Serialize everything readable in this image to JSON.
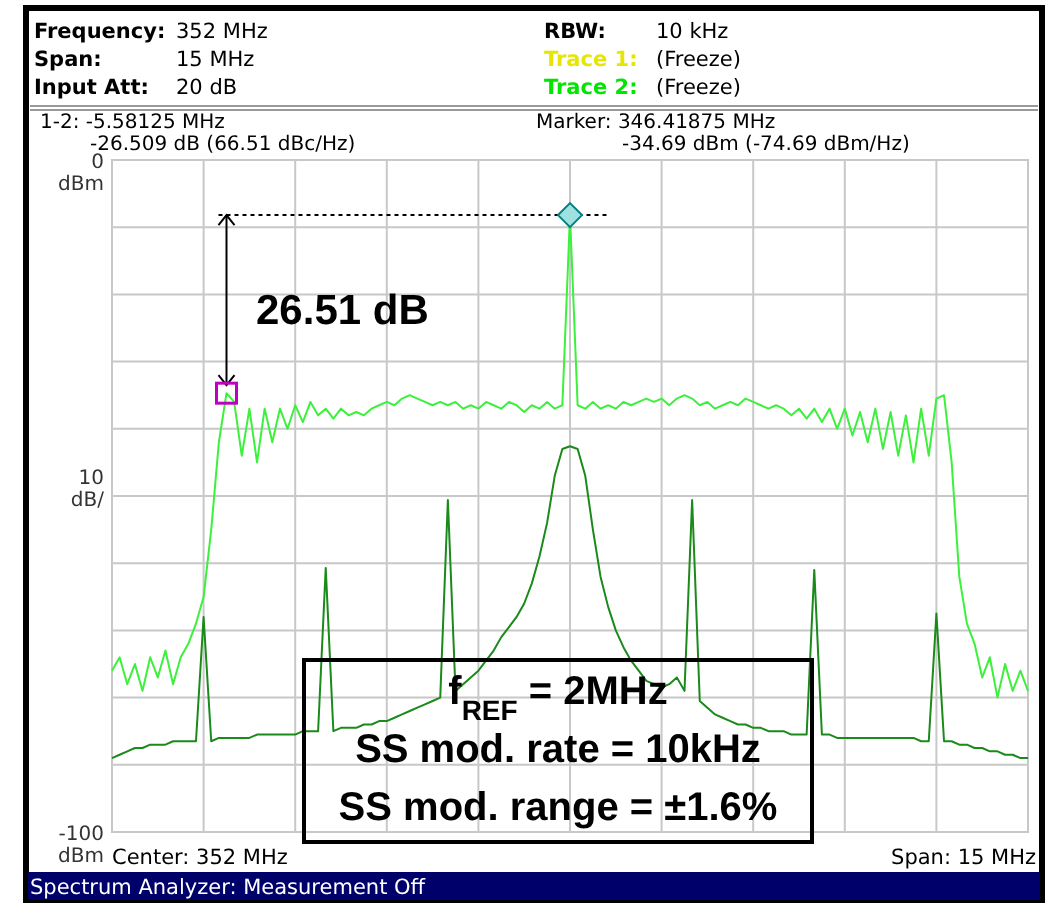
{
  "chart_data": {
    "type": "line",
    "ylabel": "10 dB/",
    "ylim": [
      -100,
      0
    ],
    "categories": [
      null,
      null,
      null,
      null,
      null,
      null,
      null,
      null,
      null,
      null,
      null,
      null,
      null,
      null,
      null,
      null,
      null,
      null,
      null,
      null,
      null,
      null,
      null,
      null,
      null,
      null,
      null,
      null,
      null,
      null,
      null,
      null,
      null,
      null,
      null,
      null,
      null,
      null,
      null,
      null,
      null,
      null,
      null,
      null,
      null,
      null,
      null,
      null,
      null,
      null,
      null,
      null,
      null,
      null,
      null,
      null,
      null,
      null,
      null,
      null,
      null,
      null,
      null,
      null,
      null,
      null,
      null,
      null,
      null,
      null,
      null,
      null,
      null,
      null,
      null,
      null,
      null,
      null,
      null,
      null,
      null,
      null,
      null,
      null,
      null,
      null,
      null,
      null,
      null,
      null,
      null,
      null,
      null,
      null,
      null,
      null,
      null,
      null,
      null,
      null,
      null,
      null,
      null,
      null,
      null,
      null,
      null,
      null,
      null,
      null,
      null,
      null,
      null,
      null,
      null,
      null,
      null,
      null,
      null,
      null,
      null
    ],
    "yticks": [
      0,
      {
        "value": -10,
        "label": null
      },
      {
        "value": -20,
        "label": null
      },
      {
        "value": -30,
        "label": null
      },
      {
        "value": -40,
        "label": null
      },
      {
        "value": -50,
        "label": null
      },
      {
        "value": -60,
        "label": null
      },
      {
        "value": -70,
        "label": null
      },
      {
        "value": -80,
        "label": null
      },
      {
        "value": -90,
        "label": null
      },
      -100
    ],
    "tick_labels": "y",
    "grid": true,
    "ref_lines": [
      {
        "axis": "y",
        "value": -8.2,
        "color": "#000000",
        "line_style": "dashed"
      }
    ],
    "series": [
      {
        "color": "#3cf03c",
        "values": [
          -76,
          -74,
          -78,
          -75,
          -79,
          -74,
          -77,
          -73,
          -78,
          -74,
          -72,
          -69,
          -65,
          -55,
          -42,
          -34.7,
          -36,
          -44,
          -37,
          -45,
          -37,
          -42,
          -37,
          -40,
          -36.5,
          -39,
          -36,
          -38,
          -37,
          -38.5,
          -37,
          -38,
          -37.5,
          -38,
          -37,
          -36.5,
          -36,
          -36.5,
          -35.5,
          -35,
          -35.5,
          -36,
          -36.5,
          -36,
          -36.5,
          -36,
          -37,
          -36.5,
          -37,
          -36,
          -36.5,
          -37,
          -36,
          -36.5,
          -37.5,
          -36.5,
          -37,
          -36,
          -37,
          -36.5,
          -8.2,
          -36.5,
          -37,
          -36,
          -37,
          -36.5,
          -37,
          -36,
          -36.5,
          -36,
          -35.5,
          -36,
          -35.5,
          -36.5,
          -35.5,
          -35,
          -35.5,
          -36.5,
          -36,
          -37,
          -36.5,
          -36,
          -36.5,
          -35.5,
          -36,
          -36.5,
          -37,
          -36.5,
          -37,
          -38,
          -37,
          -38.5,
          -37,
          -39,
          -37,
          -40,
          -37,
          -41,
          -37.5,
          -42,
          -37,
          -43,
          -37.5,
          -44,
          -38,
          -45,
          -37,
          -44,
          -35.5,
          -35,
          -45,
          -62,
          -69,
          -72,
          -77,
          -74,
          -80,
          -75,
          -79,
          -76,
          -79
        ]
      },
      {
        "color": "#1a8a1a",
        "values": [
          -89,
          -88.5,
          -88,
          -87.5,
          -87.5,
          -87,
          -87,
          -87,
          -86.5,
          -86.5,
          -86.5,
          -86.5,
          -68,
          -86.5,
          -86,
          -86,
          -86,
          -86,
          -86,
          -85.5,
          -85.5,
          -85.5,
          -85.5,
          -85.5,
          -85.5,
          -85,
          -85,
          -85,
          -60.7,
          -85,
          -84.5,
          -84.5,
          -84.5,
          -84,
          -84,
          -83.5,
          -83.5,
          -83,
          -82.5,
          -82,
          -81.5,
          -81,
          -80.5,
          -80,
          -50.6,
          -79,
          -78,
          -77,
          -76,
          -74.5,
          -73,
          -71,
          -69.5,
          -68,
          -66,
          -63,
          -59,
          -54,
          -47,
          -43,
          -42.6,
          -43,
          -47,
          -55,
          -62,
          -66.5,
          -70,
          -72.5,
          -74.5,
          -76,
          -77.5,
          -78,
          -78.5,
          -78,
          -77,
          -79,
          -50.6,
          -80.5,
          -81.5,
          -82.5,
          -83,
          -83.5,
          -84,
          -84,
          -84.5,
          -84.5,
          -85,
          -85,
          -85,
          -85.5,
          -85.5,
          -85.5,
          -61,
          -85.5,
          -85.5,
          -86,
          -86,
          -86,
          -86,
          -86,
          -86,
          -86,
          -86,
          -86,
          -86,
          -86,
          -86.5,
          -86.5,
          -67.5,
          -86.5,
          -86.5,
          -87,
          -87,
          -87.5,
          -87.5,
          -88,
          -88,
          -88.5,
          -88.5,
          -89,
          -89
        ]
      }
    ],
    "annotations": [
      "Frequency: 352 MHz",
      "Span: 15 MHz",
      "Input Att: 20 dB",
      "RBW: 10 kHz",
      "Trace 1: (Freeze)",
      "Trace 2: (Freeze)",
      "1-2: -5.58125 MHz",
      "-26.509 dB (66.51 dBc/Hz)",
      "Marker: 346.41875 MHz",
      "-34.69 dBm (-74.69 dBm/Hz)",
      "26.51 dB",
      "f$_{REF}$ = 2MHz",
      "SS mod. rate = 10kHz",
      "SS mod. range = ±1.6%",
      "Center: 352 MHz",
      "Span: 15 MHz",
      "Spectrum Analyzer: Measurement Off",
      "dBm",
      "dBm"
    ]
  }
}
